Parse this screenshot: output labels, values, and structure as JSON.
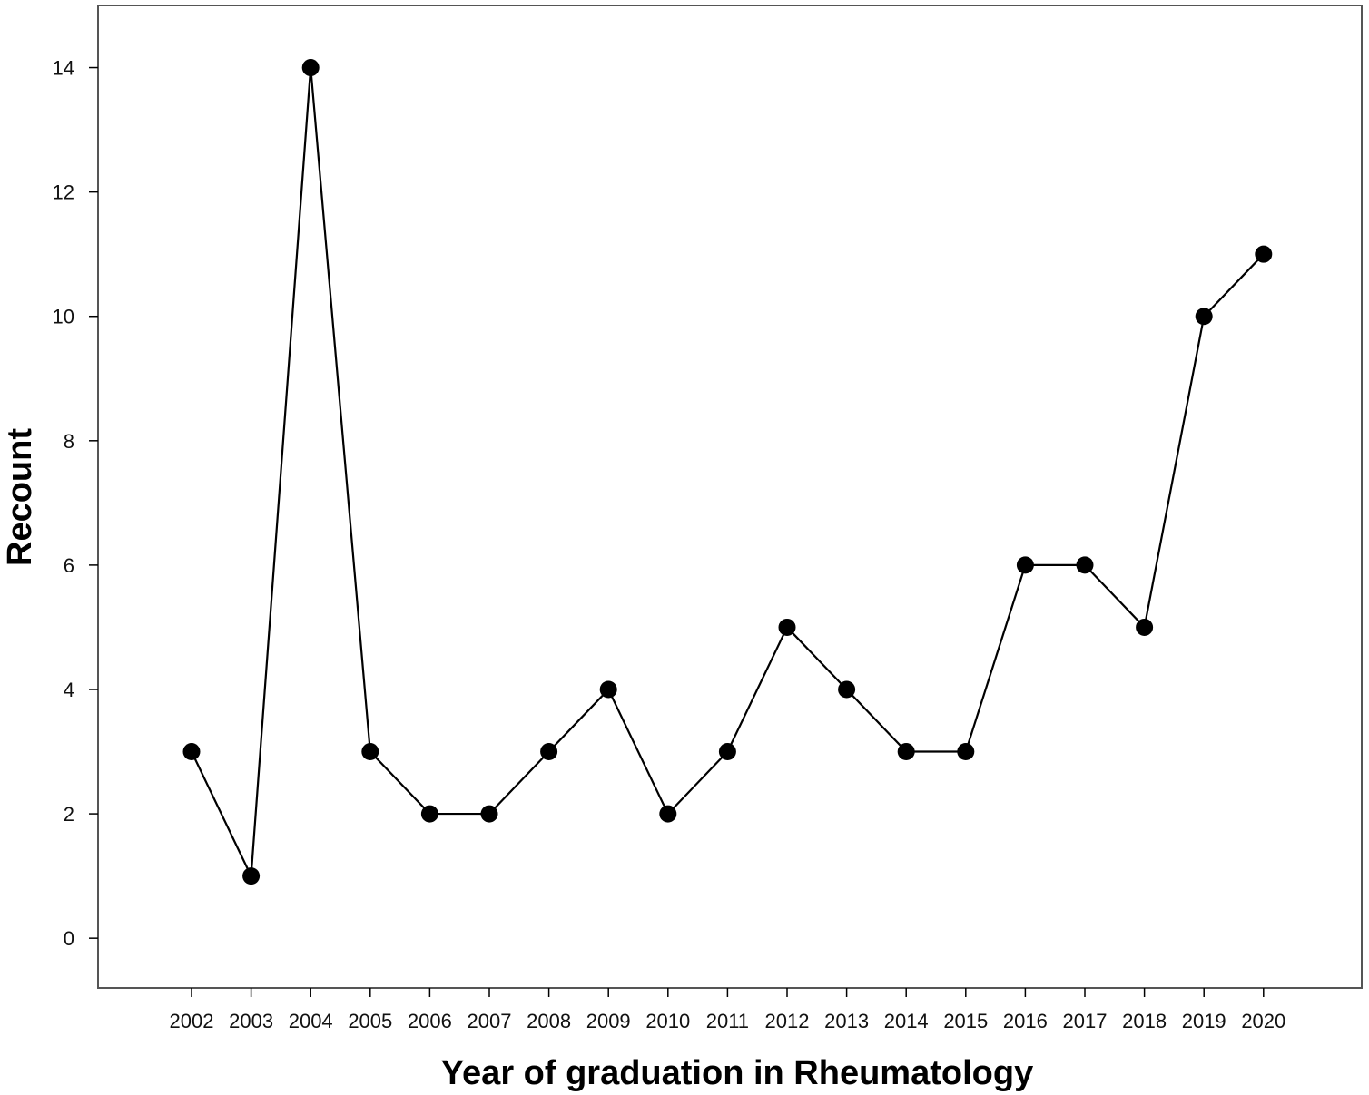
{
  "chart_data": {
    "type": "line",
    "title": "",
    "xlabel": "Year of graduation in Rheumatology",
    "ylabel": "Recount",
    "categories": [
      "2002",
      "2003",
      "2004",
      "2005",
      "2006",
      "2007",
      "2008",
      "2009",
      "2010",
      "2011",
      "2012",
      "2013",
      "2014",
      "2015",
      "2016",
      "2017",
      "2018",
      "2019",
      "2020"
    ],
    "series": [
      {
        "values": [
          3,
          1,
          14,
          3,
          2,
          2,
          3,
          4,
          2,
          3,
          5,
          4,
          3,
          3,
          6,
          6,
          5,
          10,
          11
        ]
      }
    ],
    "ylim": [
      -0.8,
      15.0
    ],
    "yticks": [
      0,
      2,
      4,
      6,
      8,
      10,
      12,
      14
    ],
    "grid": false,
    "legend": "none",
    "colors": {
      "line": "#000000",
      "marker": "#000000",
      "frame": "#555555"
    }
  }
}
